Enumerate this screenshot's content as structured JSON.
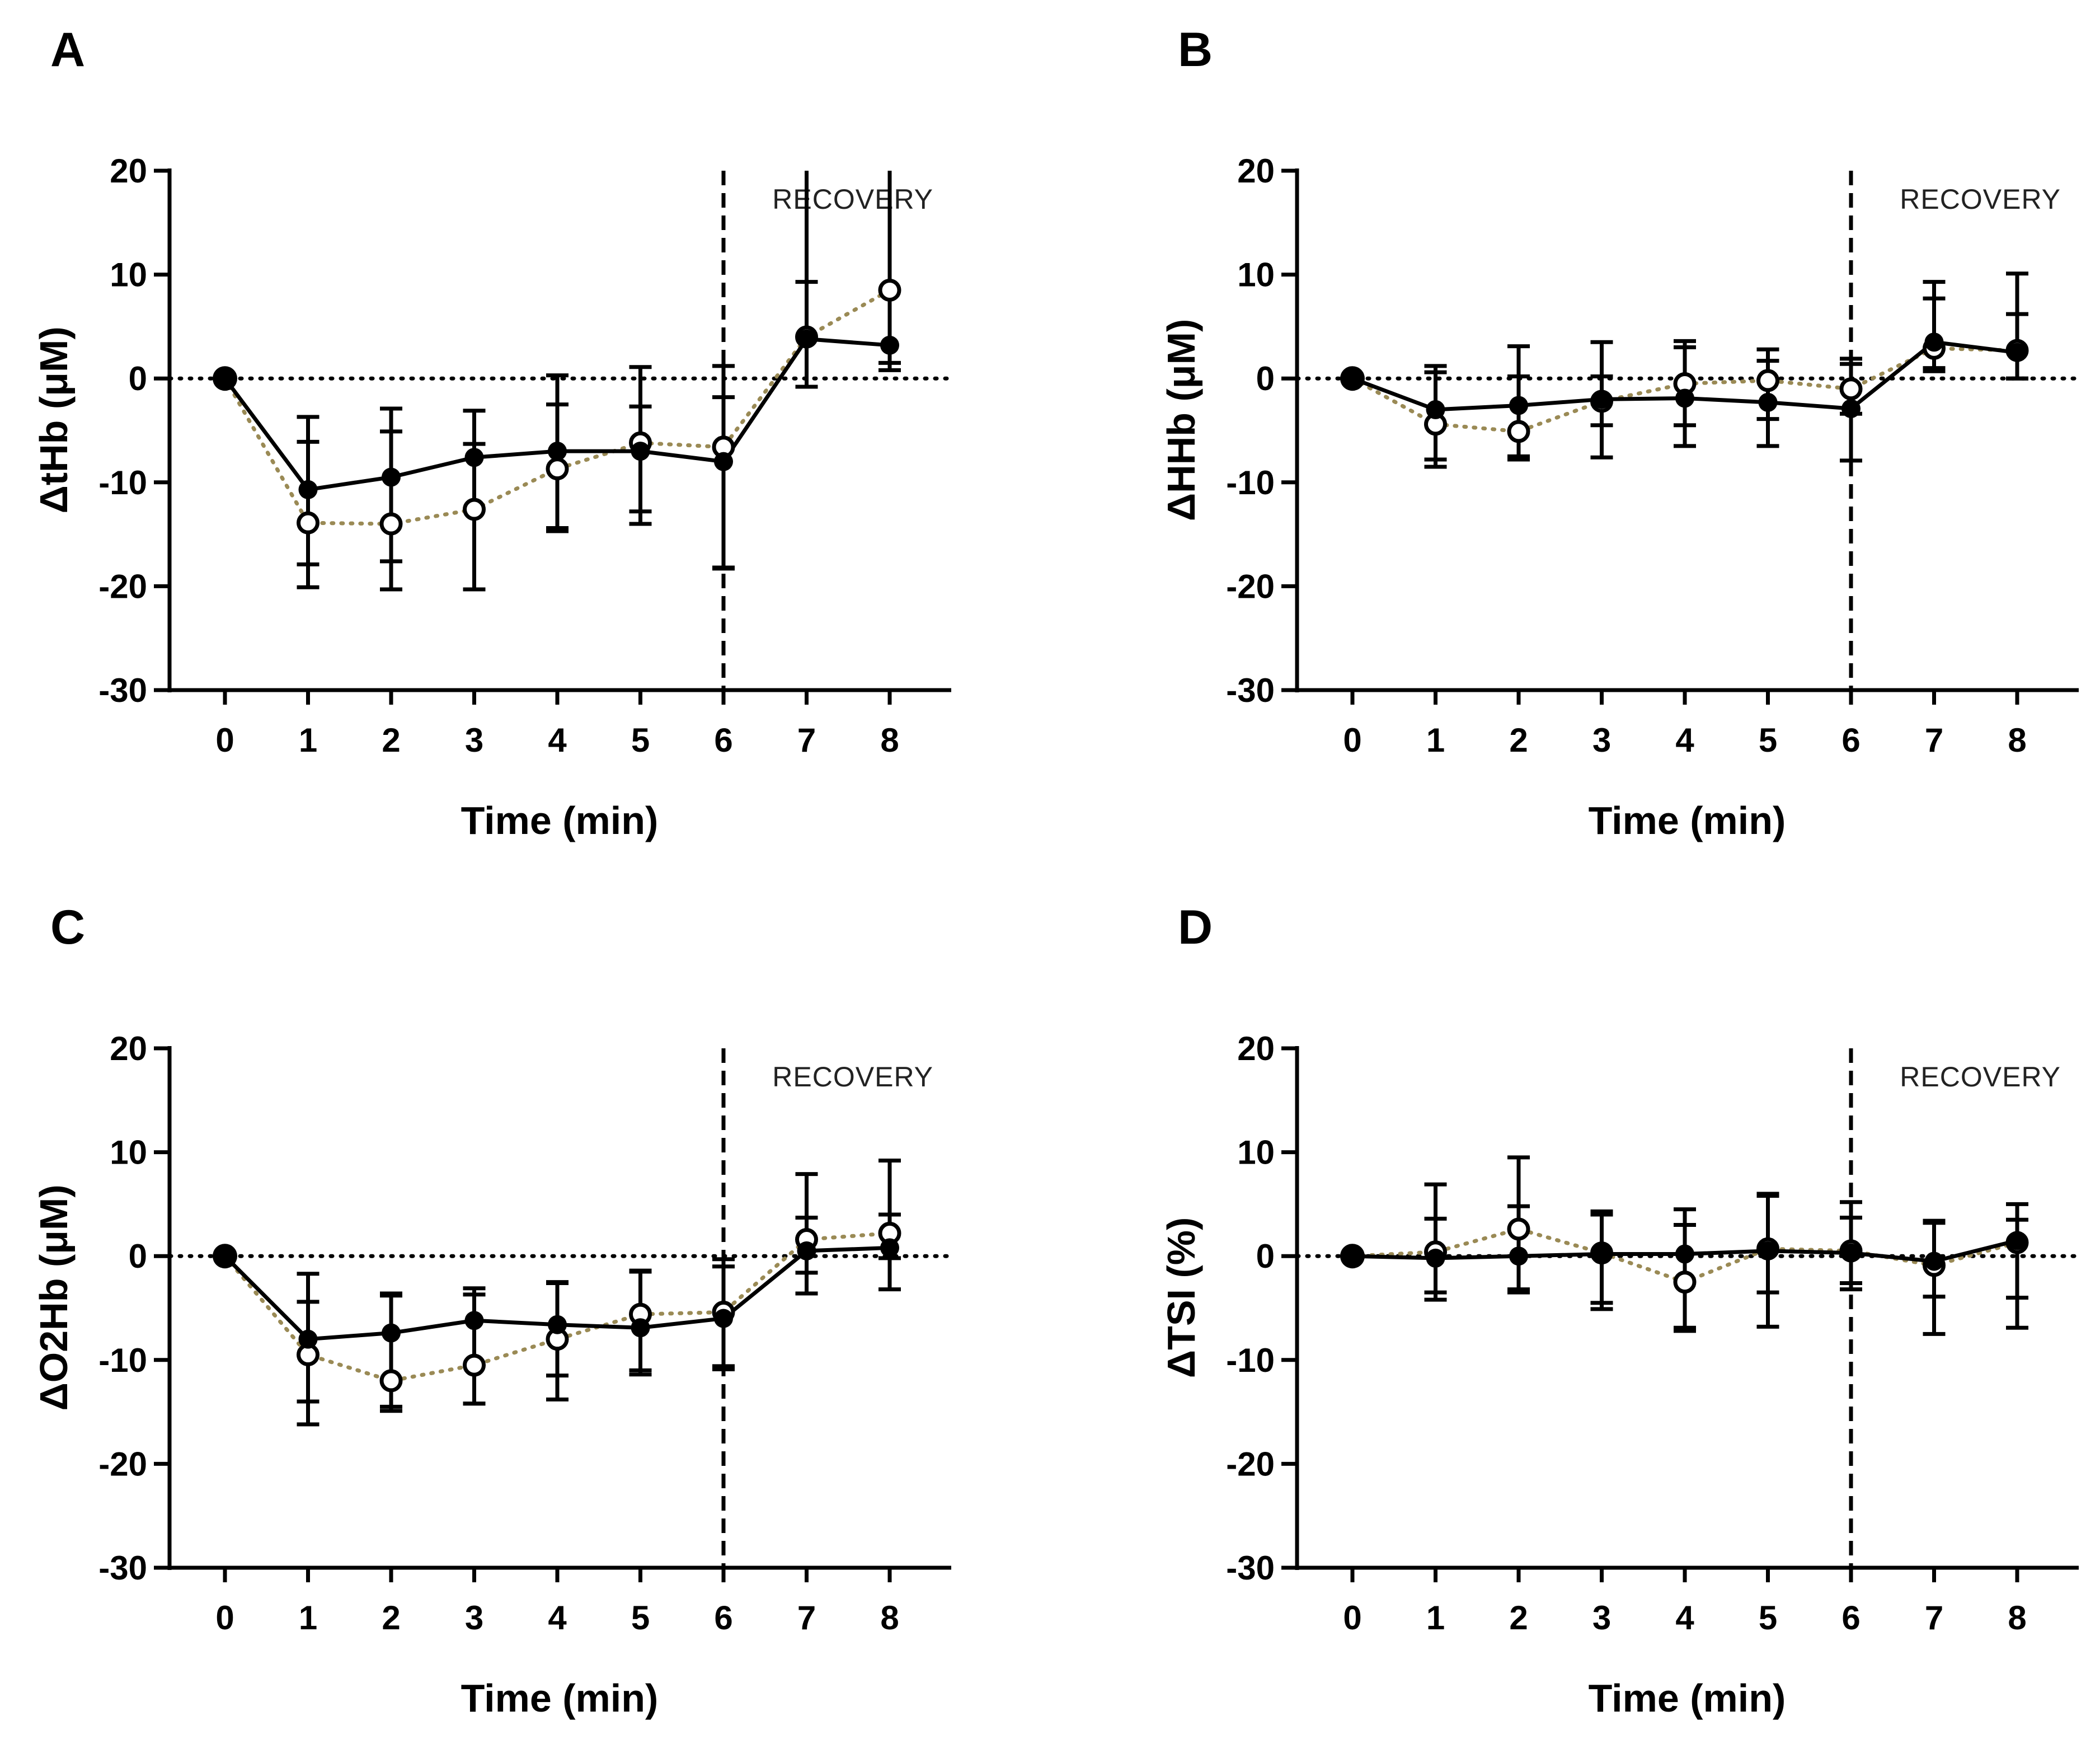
{
  "chart_data": [
    {
      "panel": "A",
      "type": "line",
      "ylabel": "ΔtHb (μM)",
      "xlabel": "Time (min)",
      "annotation": "RECOVERY",
      "annotation_x": 6,
      "x": [
        0,
        1,
        2,
        3,
        4,
        5,
        6,
        7,
        8
      ],
      "ylim": [
        -30,
        20
      ],
      "yticks": [
        20,
        10,
        0,
        -10,
        -20,
        -30
      ],
      "ytick_labels": [
        "20",
        "10",
        "0",
        "-10",
        "-20",
        "-30"
      ],
      "xtick_labels": [
        "0",
        "1",
        "2",
        "3",
        "4",
        "5",
        "6",
        "7",
        "8"
      ],
      "series": [
        {
          "name": "filled",
          "style": "solid",
          "marker": "filled",
          "values": [
            0,
            -10.7,
            -9.5,
            -7.6,
            -7.0,
            -7.0,
            -8.0,
            3.8,
            3.2
          ],
          "err_lo": [
            0,
            -17.9,
            -17.6,
            -20.3,
            -14.4,
            -14.0,
            -18.2,
            -0.8,
            0.8
          ],
          "err_hi": [
            0,
            -3.7,
            -2.9,
            -3.1,
            0.3,
            1.1,
            1.2,
            9.3,
            20
          ]
        },
        {
          "name": "open",
          "style": "dotted",
          "marker": "open",
          "values": [
            0,
            -13.9,
            -14.0,
            -12.6,
            -8.7,
            -6.2,
            -6.6,
            4.0,
            8.5
          ],
          "err_lo": [
            0,
            -20.1,
            -20.3,
            -20.3,
            -14.7,
            -12.8,
            -18.3,
            -0.8,
            1.5
          ],
          "err_hi": [
            0,
            -6.1,
            -5.1,
            -6.3,
            -2.5,
            -2.7,
            -1.8,
            20,
            20
          ]
        }
      ]
    },
    {
      "panel": "B",
      "type": "line",
      "ylabel": "ΔHHb (μM)",
      "xlabel": "Time (min)",
      "annotation": "RECOVERY",
      "annotation_x": 6,
      "x": [
        0,
        1,
        2,
        3,
        4,
        5,
        6,
        7,
        8
      ],
      "ylim": [
        -30,
        20
      ],
      "yticks": [
        20,
        10,
        0,
        -10,
        -20,
        -30
      ],
      "ytick_labels": [
        "20",
        "10",
        "0",
        "-10",
        "-20",
        "-30"
      ],
      "xtick_labels": [
        "0",
        "1",
        "2",
        "3",
        "4",
        "5",
        "6",
        "7",
        "8"
      ],
      "series": [
        {
          "name": "filled",
          "style": "solid",
          "marker": "filled",
          "values": [
            0,
            -3.0,
            -2.6,
            -2.0,
            -1.9,
            -2.3,
            -2.9,
            3.5,
            2.5
          ],
          "err_lo": [
            0,
            -8.5,
            -7.5,
            -7.6,
            -6.5,
            -6.5,
            -7.9,
            1.0,
            0.0
          ],
          "err_hi": [
            0,
            1.2,
            3.1,
            3.5,
            3.6,
            1.7,
            1.9,
            9.3,
            10.1
          ]
        },
        {
          "name": "open",
          "style": "dotted",
          "marker": "open",
          "values": [
            0,
            -4.4,
            -5.1,
            -2.2,
            -0.5,
            -0.2,
            -1.0,
            2.9,
            2.7
          ],
          "err_lo": [
            0,
            -7.8,
            -7.8,
            -4.5,
            -4.5,
            -3.9,
            -3.4,
            0.7,
            0.0
          ],
          "err_hi": [
            0,
            0.6,
            0.2,
            0.2,
            3.0,
            2.8,
            1.4,
            7.7,
            6.2
          ]
        }
      ]
    },
    {
      "panel": "C",
      "type": "line",
      "ylabel": "ΔO2Hb (μM)",
      "xlabel": "Time (min)",
      "annotation": "RECOVERY",
      "annotation_x": 6,
      "x": [
        0,
        1,
        2,
        3,
        4,
        5,
        6,
        7,
        8
      ],
      "ylim": [
        -30,
        20
      ],
      "yticks": [
        20,
        10,
        0,
        -10,
        -20,
        -30
      ],
      "ytick_labels": [
        "20",
        "10",
        "0",
        "-10",
        "-20",
        "-30"
      ],
      "xtick_labels": [
        "0",
        "1",
        "2",
        "3",
        "4",
        "5",
        "6",
        "7",
        "8"
      ],
      "series": [
        {
          "name": "filled",
          "style": "solid",
          "marker": "filled",
          "values": [
            0,
            -8.0,
            -7.4,
            -6.2,
            -6.6,
            -6.9,
            -6.0,
            0.5,
            0.8
          ],
          "err_lo": [
            0,
            -16.2,
            -14.5,
            -14.2,
            -13.8,
            -11.4,
            -10.9,
            -3.6,
            -3.2
          ],
          "err_hi": [
            0,
            -1.7,
            -3.6,
            -3.1,
            -2.5,
            -1.4,
            -1.0,
            7.9,
            9.2
          ]
        },
        {
          "name": "open",
          "style": "dotted",
          "marker": "open",
          "values": [
            0,
            -9.5,
            -12.0,
            -10.5,
            -8.0,
            -5.6,
            -5.4,
            1.6,
            2.2
          ],
          "err_lo": [
            0,
            -14.0,
            -14.9,
            -14.2,
            -11.5,
            -11.0,
            -10.6,
            -1.6,
            -0.2
          ],
          "err_hi": [
            0,
            -4.4,
            -3.8,
            -3.7,
            -2.6,
            -1.5,
            -0.3,
            3.7,
            4.0
          ]
        }
      ]
    },
    {
      "panel": "D",
      "type": "line",
      "ylabel": "ΔTSI (%)",
      "xlabel": "Time (min)",
      "annotation": "RECOVERY",
      "annotation_x": 6,
      "x": [
        0,
        1,
        2,
        3,
        4,
        5,
        6,
        7,
        8
      ],
      "ylim": [
        -30,
        20
      ],
      "yticks": [
        20,
        10,
        0,
        -10,
        -20,
        -30
      ],
      "ytick_labels": [
        "20",
        "10",
        "0",
        "-10",
        "-20",
        "-30"
      ],
      "xtick_labels": [
        "0",
        "1",
        "2",
        "3",
        "4",
        "5",
        "6",
        "7",
        "8"
      ],
      "series": [
        {
          "name": "filled",
          "style": "solid",
          "marker": "filled",
          "values": [
            0,
            -0.2,
            0.0,
            0.2,
            0.2,
            0.5,
            0.3,
            -0.5,
            1.5
          ],
          "err_lo": [
            0,
            -4.2,
            -3.5,
            -4.5,
            -7.2,
            -6.8,
            -3.2,
            -7.5,
            -6.9
          ],
          "err_hi": [
            0,
            6.9,
            4.8,
            4.0,
            4.5,
            5.8,
            5.2,
            3.4,
            5.0
          ]
        },
        {
          "name": "open",
          "style": "dotted",
          "marker": "open",
          "values": [
            0,
            0.4,
            2.6,
            0.3,
            -2.5,
            0.7,
            0.5,
            -0.9,
            1.3
          ],
          "err_lo": [
            0,
            -3.5,
            -3.2,
            -5.1,
            -6.9,
            -3.5,
            -2.6,
            -3.9,
            -4.0
          ],
          "err_hi": [
            0,
            3.6,
            9.5,
            4.3,
            3.0,
            6.0,
            3.7,
            3.2,
            3.5
          ]
        }
      ]
    }
  ],
  "colors": {
    "axis": "#000000",
    "filled_series": "#000000",
    "open_series_line": "#9a8a55",
    "open_series_marker": "#000000",
    "zero_line": "#000000"
  }
}
